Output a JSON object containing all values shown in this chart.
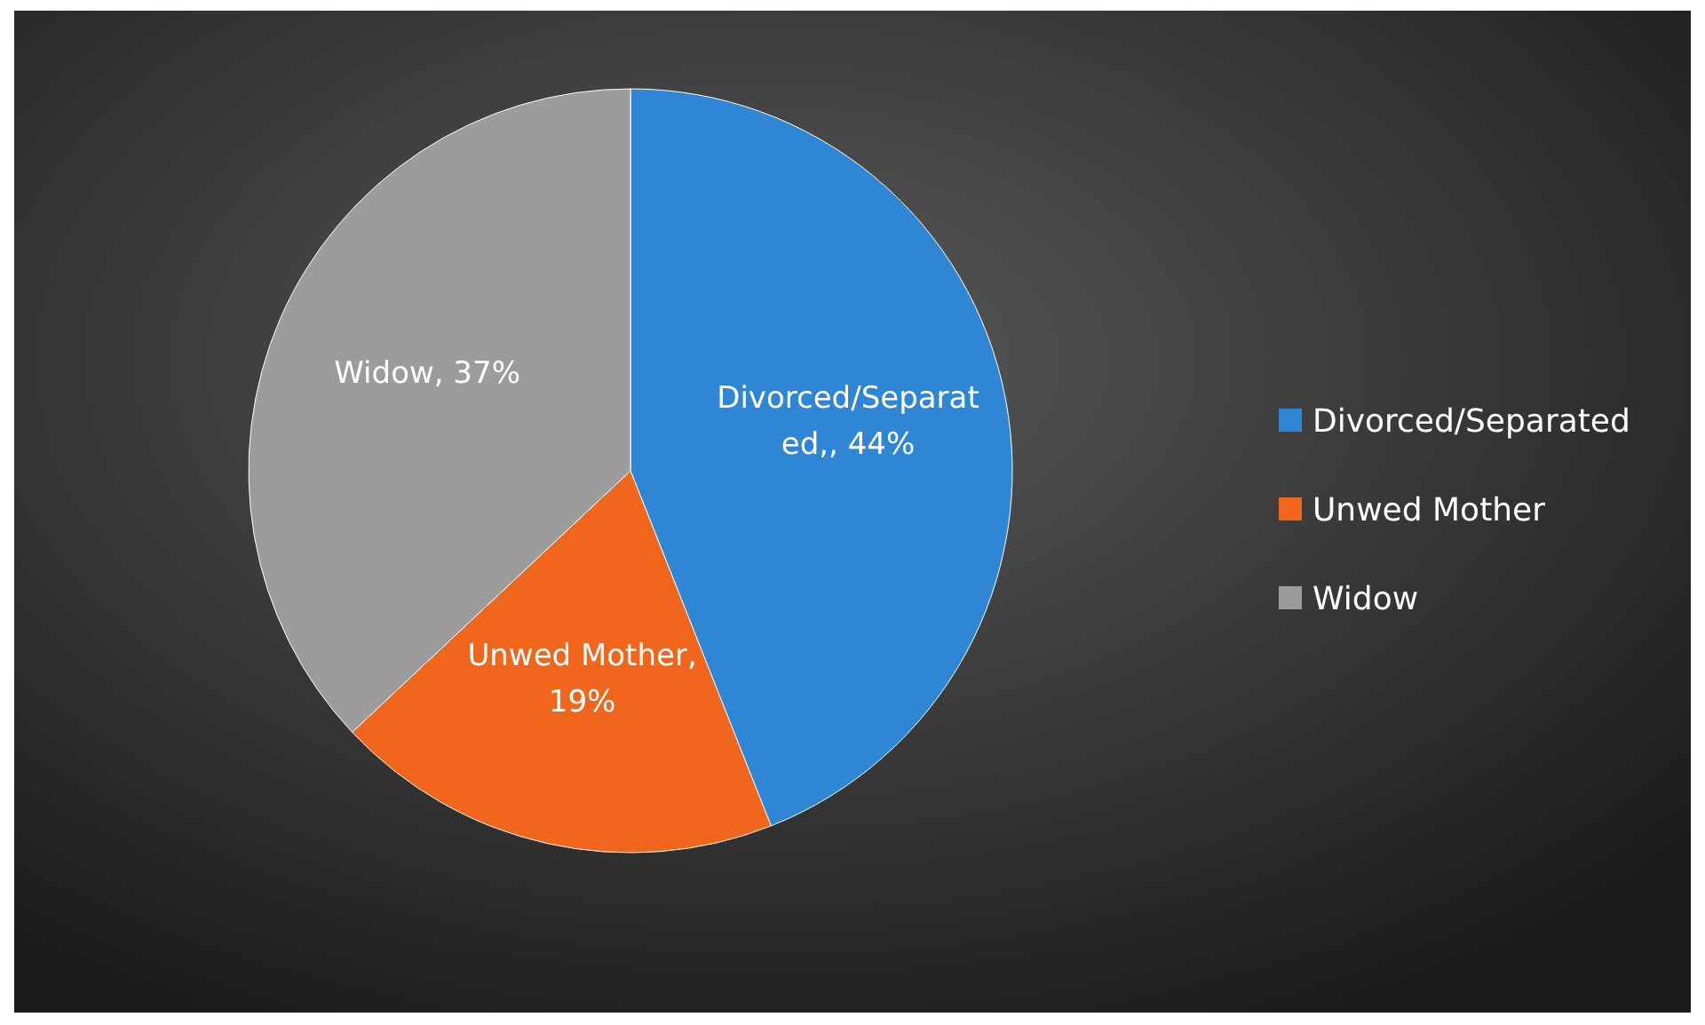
{
  "chart_data": {
    "type": "pie",
    "categories": [
      "Divorced/Separated",
      "Unwed Mother",
      "Widow"
    ],
    "values": [
      44,
      19,
      37
    ],
    "colors": [
      "#2f86d4",
      "#f0661c",
      "#9c9c9c"
    ],
    "value_labels": [
      "Divorced/Separated,, 44%",
      "Unwed Mother, 19%",
      "Widow, 37%"
    ],
    "legend": "right"
  }
}
